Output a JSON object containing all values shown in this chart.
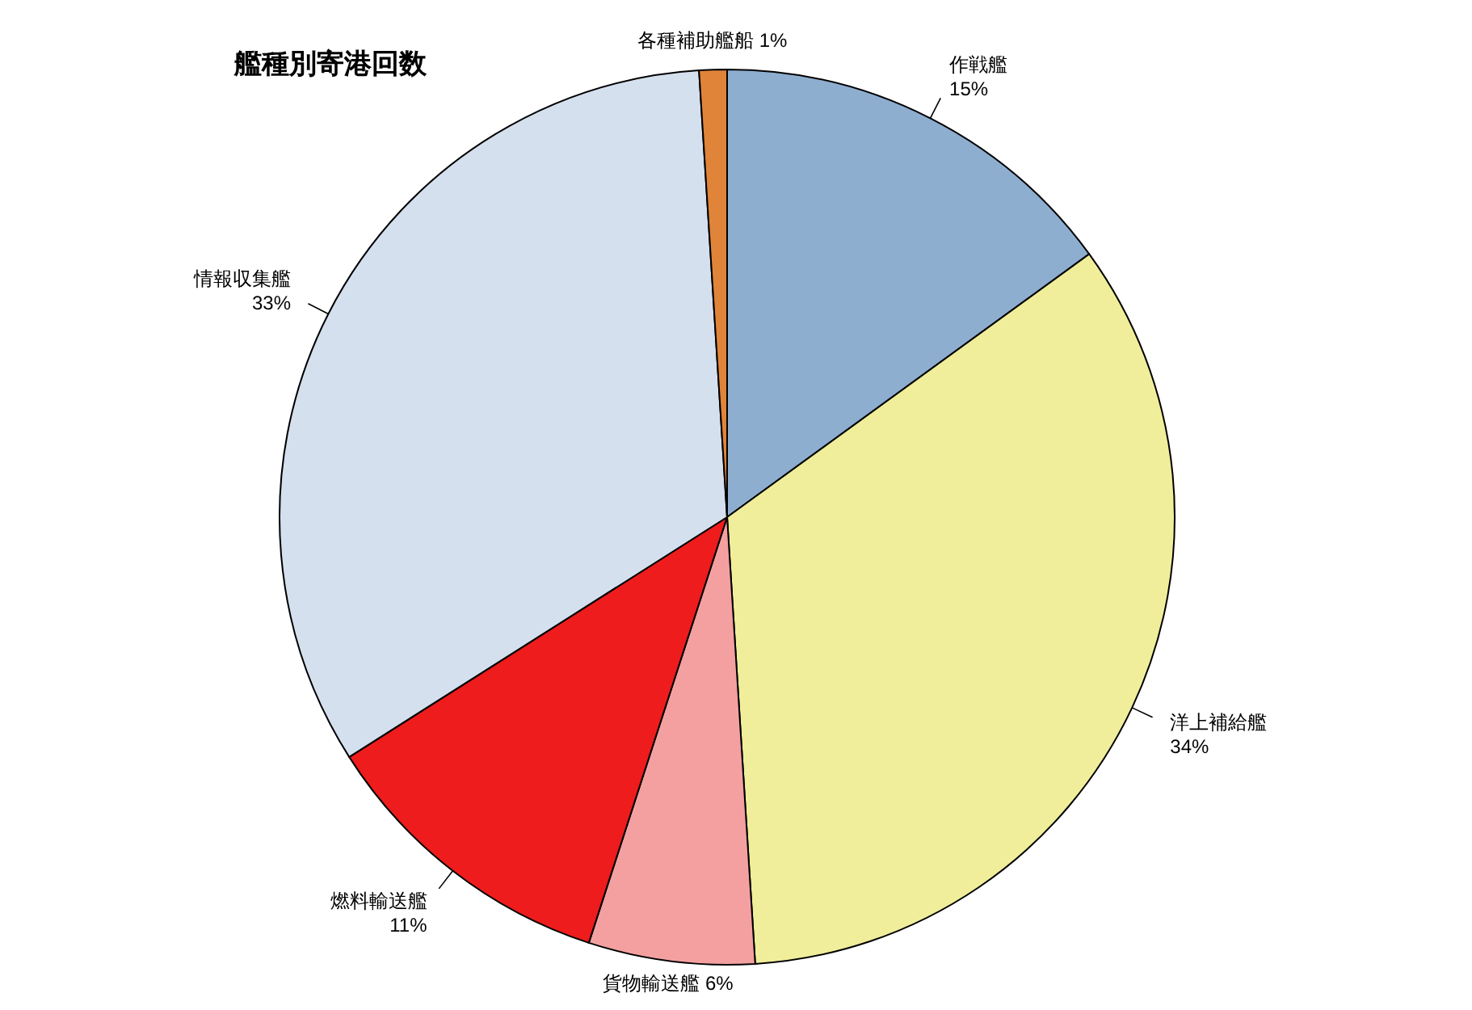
{
  "chart_data": {
    "type": "pie",
    "title": "艦種別寄港回数",
    "categories": [
      "作戦艦",
      "洋上補給艦",
      "貨物輸送艦",
      "燃料輸送艦",
      "情報収集艦",
      "各種補助艦船"
    ],
    "values": [
      15,
      34,
      6,
      11,
      33,
      1
    ],
    "value_labels": [
      "15%",
      "34%",
      "6%",
      "11%",
      "33%",
      "1%"
    ],
    "colors": [
      "#8eaed0",
      "#f0ee9a",
      "#f4a0a0",
      "#ee1c1c",
      "#d4e0ee",
      "#e0843a"
    ]
  }
}
